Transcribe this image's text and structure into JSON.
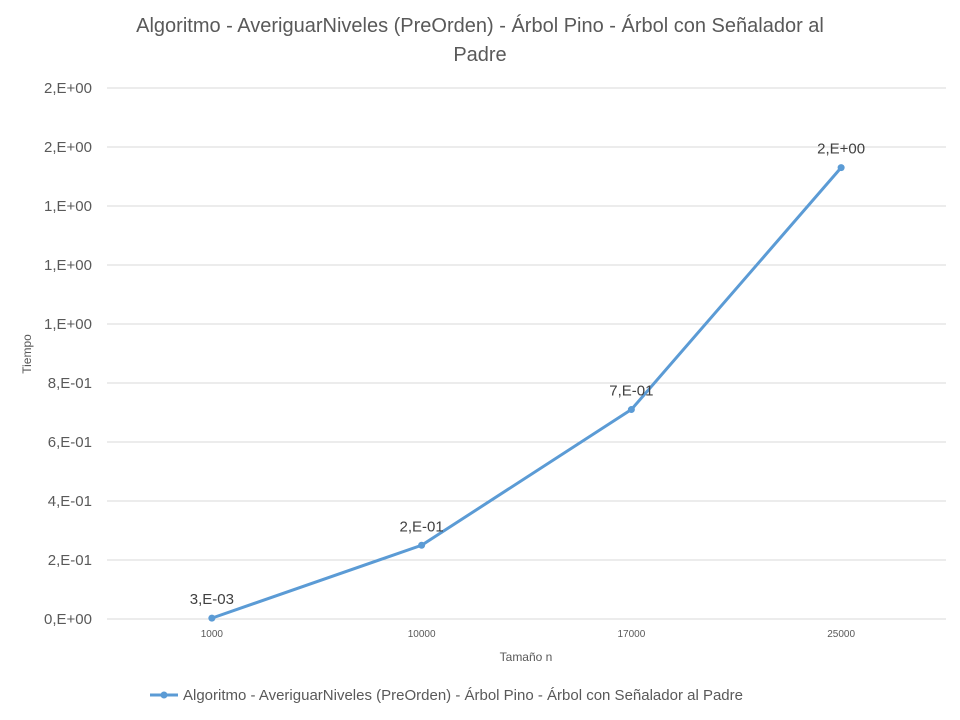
{
  "chart_data": {
    "type": "line",
    "title_lines": [
      "Algoritmo - AveriguarNiveles (PreOrden) - Árbol Pino - Árbol con Señalador al",
      "Padre"
    ],
    "xlabel": "Tamaño n",
    "ylabel": "Tiempo",
    "categories": [
      "1000",
      "10000",
      "17000",
      "25000"
    ],
    "y_ticks": [
      {
        "value": 0.0,
        "label": "0,E+00"
      },
      {
        "value": 0.2,
        "label": "2,E-01"
      },
      {
        "value": 0.4,
        "label": "4,E-01"
      },
      {
        "value": 0.6,
        "label": "6,E-01"
      },
      {
        "value": 0.8,
        "label": "8,E-01"
      },
      {
        "value": 1.0,
        "label": "1,E+00"
      },
      {
        "value": 1.2,
        "label": "1,E+00"
      },
      {
        "value": 1.4,
        "label": "1,E+00"
      },
      {
        "value": 1.6,
        "label": "2,E+00"
      },
      {
        "value": 1.8,
        "label": "2,E+00"
      }
    ],
    "ylim": [
      0,
      1.8
    ],
    "grid": true,
    "legend_position": "bottom",
    "series": [
      {
        "name": "Algoritmo - AveriguarNiveles (PreOrden) - Árbol Pino - Árbol con Señalador al Padre",
        "color": "#5b9bd5",
        "values": [
          0.003,
          0.25,
          0.71,
          1.53
        ],
        "data_labels": [
          "3,E-03",
          "2,E-01",
          "7,E-01",
          "2,E+00"
        ]
      }
    ]
  }
}
